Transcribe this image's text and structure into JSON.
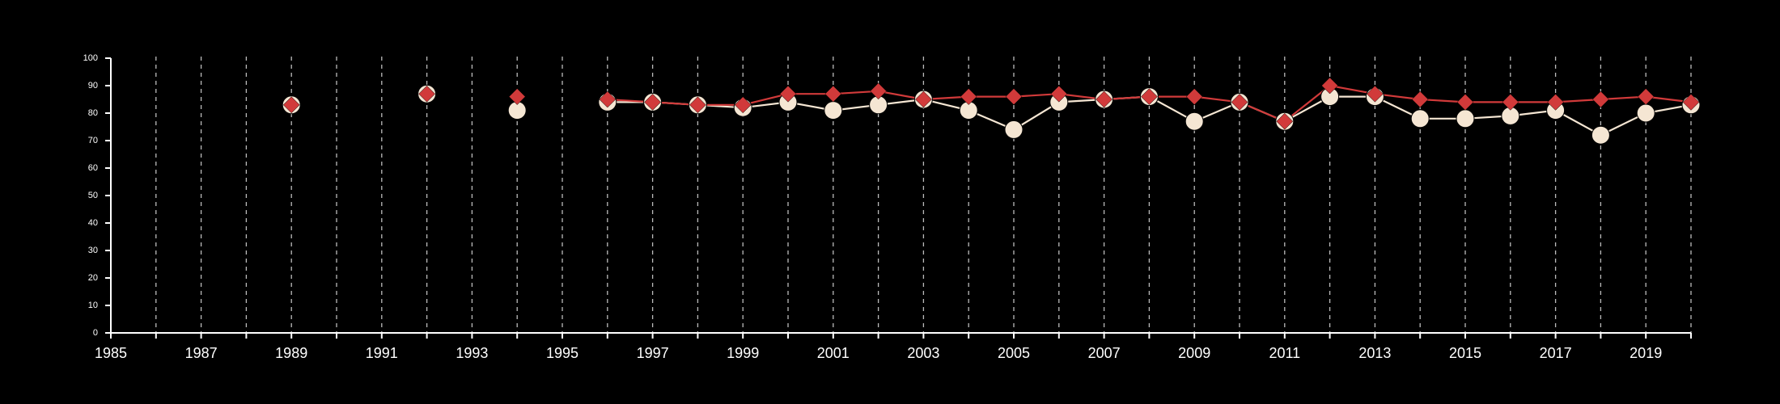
{
  "chart_data": {
    "type": "line",
    "title": "",
    "xlabel": "",
    "ylabel": "",
    "xlim": [
      1985,
      2020
    ],
    "ylim": [
      0,
      100
    ],
    "x_ticks": [
      "1985",
      "1987",
      "1989",
      "1991",
      "1993",
      "1995",
      "1997",
      "1999",
      "2001",
      "2003",
      "2005",
      "2007",
      "2009",
      "2011",
      "2013",
      "2015",
      "2017",
      "2019"
    ],
    "y_ticks": [
      "0",
      "10",
      "20",
      "30",
      "40",
      "50",
      "60",
      "70",
      "80",
      "90",
      "100"
    ],
    "vertical_gridlines": true,
    "legend": "none",
    "series": [
      {
        "color": "#f5e6d3",
        "marker": "circle",
        "points": [
          {
            "x": 1989,
            "y": 83
          },
          {
            "x": 1992,
            "y": 87
          },
          {
            "x": 1994,
            "y": 81
          },
          {
            "x": 1996,
            "y": 84
          },
          {
            "x": 1997,
            "y": 84
          },
          {
            "x": 1998,
            "y": 83
          },
          {
            "x": 1999,
            "y": 82
          },
          {
            "x": 2000,
            "y": 84
          },
          {
            "x": 2001,
            "y": 81
          },
          {
            "x": 2002,
            "y": 83
          },
          {
            "x": 2003,
            "y": 85
          },
          {
            "x": 2004,
            "y": 81
          },
          {
            "x": 2005,
            "y": 74
          },
          {
            "x": 2006,
            "y": 84
          },
          {
            "x": 2007,
            "y": 85
          },
          {
            "x": 2008,
            "y": 86
          },
          {
            "x": 2009,
            "y": 77
          },
          {
            "x": 2010,
            "y": 84
          },
          {
            "x": 2011,
            "y": 77
          },
          {
            "x": 2012,
            "y": 86
          },
          {
            "x": 2013,
            "y": 86
          },
          {
            "x": 2014,
            "y": 78
          },
          {
            "x": 2015,
            "y": 78
          },
          {
            "x": 2016,
            "y": 79
          },
          {
            "x": 2017,
            "y": 81
          },
          {
            "x": 2018,
            "y": 72
          },
          {
            "x": 2019,
            "y": 80
          },
          {
            "x": 2020,
            "y": 83
          }
        ]
      },
      {
        "color": "#d13a3a",
        "marker": "diamond",
        "points": [
          {
            "x": 1989,
            "y": 83
          },
          {
            "x": 1992,
            "y": 87
          },
          {
            "x": 1994,
            "y": 86
          },
          {
            "x": 1996,
            "y": 85
          },
          {
            "x": 1997,
            "y": 84
          },
          {
            "x": 1998,
            "y": 83
          },
          {
            "x": 1999,
            "y": 83
          },
          {
            "x": 2000,
            "y": 87
          },
          {
            "x": 2001,
            "y": 87
          },
          {
            "x": 2002,
            "y": 88
          },
          {
            "x": 2003,
            "y": 85
          },
          {
            "x": 2004,
            "y": 86
          },
          {
            "x": 2005,
            "y": 86
          },
          {
            "x": 2006,
            "y": 87
          },
          {
            "x": 2007,
            "y": 85
          },
          {
            "x": 2008,
            "y": 86
          },
          {
            "x": 2009,
            "y": 86
          },
          {
            "x": 2010,
            "y": 84
          },
          {
            "x": 2011,
            "y": 77
          },
          {
            "x": 2012,
            "y": 90
          },
          {
            "x": 2013,
            "y": 87
          },
          {
            "x": 2014,
            "y": 85
          },
          {
            "x": 2015,
            "y": 84
          },
          {
            "x": 2016,
            "y": 84
          },
          {
            "x": 2017,
            "y": 84
          },
          {
            "x": 2018,
            "y": 85
          },
          {
            "x": 2019,
            "y": 86
          },
          {
            "x": 2020,
            "y": 84
          }
        ]
      }
    ]
  }
}
